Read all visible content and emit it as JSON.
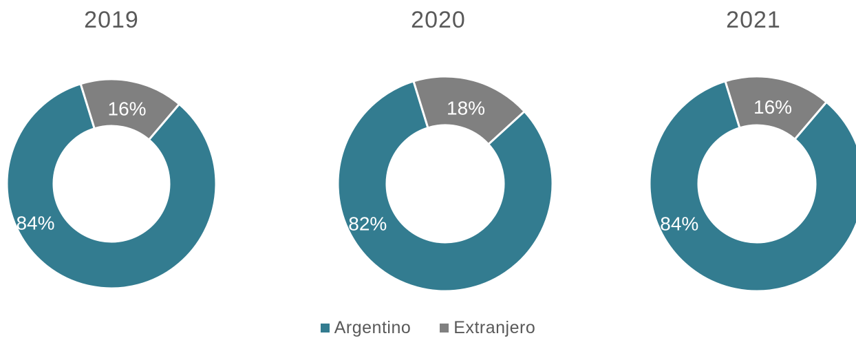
{
  "chart_data": [
    {
      "type": "pie",
      "title": "2019",
      "categories": [
        "Argentino",
        "Extranjero"
      ],
      "values": [
        84,
        16
      ],
      "labels": [
        "84%",
        "16%"
      ]
    },
    {
      "type": "pie",
      "title": "2020",
      "categories": [
        "Argentino",
        "Extranjero"
      ],
      "values": [
        82,
        18
      ],
      "labels": [
        "82%",
        "18%"
      ]
    },
    {
      "type": "pie",
      "title": "2021",
      "categories": [
        "Argentino",
        "Extranjero"
      ],
      "values": [
        84,
        16
      ],
      "labels": [
        "84%",
        "16%"
      ]
    }
  ],
  "colors": {
    "Argentino": "#337C90",
    "Extranjero": "#808080"
  },
  "legend": {
    "placement": "bottom",
    "items": [
      {
        "label": "Argentino",
        "color": "#337C90"
      },
      {
        "label": "Extranjero",
        "color": "#808080"
      }
    ]
  }
}
